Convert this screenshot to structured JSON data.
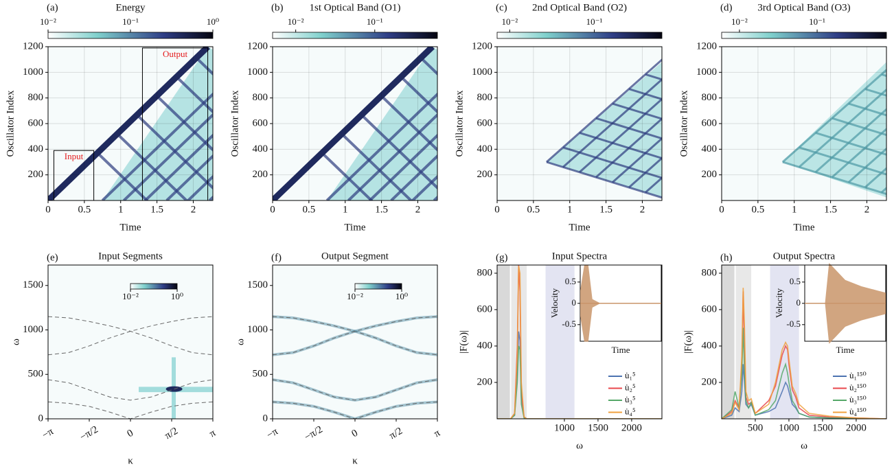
{
  "chart_data": [
    {
      "type": "heatmap",
      "panel_label": "(a)",
      "title": "Energy",
      "colorbar_lim": [
        0.01,
        1
      ],
      "colorbar_scale": "log",
      "colorbar_ticks": [
        {
          "value": 0.01,
          "label": "10⁻²"
        },
        {
          "value": 0.1,
          "label": "10⁻¹"
        },
        {
          "value": 1,
          "label": "10⁰"
        }
      ],
      "xlabel": "Time",
      "ylabel": "Oscillator Index",
      "xlim": [
        0,
        2.27
      ],
      "xticks": [
        0,
        0.5,
        1,
        1.5,
        2
      ],
      "ylim": [
        0,
        1200
      ],
      "yticks": [
        200,
        400,
        600,
        800,
        1000,
        1200
      ],
      "grid": true,
      "boxes": [
        {
          "label": "Input",
          "x": [
            0.08,
            0.63
          ],
          "y": [
            0,
            390
          ],
          "color": "#e41a1c"
        },
        {
          "label": "Output",
          "x": [
            1.3,
            2.2
          ],
          "y": [
            0,
            1190
          ],
          "color": "#e41a1c"
        }
      ]
    },
    {
      "type": "heatmap",
      "panel_label": "(b)",
      "title": "1st Optical Band (O1)",
      "colorbar_lim": [
        0.0051,
        0.62
      ],
      "colorbar_scale": "log",
      "colorbar_ticks": [
        {
          "value": 0.01,
          "label": "10⁻²"
        },
        {
          "value": 0.1,
          "label": "10⁻¹"
        }
      ],
      "xlabel": "Time",
      "ylabel": "Oscillator Index",
      "xlim": [
        0,
        2.27
      ],
      "xticks": [
        0,
        0.5,
        1,
        1.5,
        2
      ],
      "ylim": [
        0,
        1200
      ],
      "yticks": [
        200,
        400,
        600,
        800,
        1000,
        1200
      ],
      "grid": true
    },
    {
      "type": "heatmap",
      "panel_label": "(c)",
      "title": "2nd Optical Band (O2)",
      "colorbar_lim": [
        0.0071,
        0.63
      ],
      "colorbar_scale": "log",
      "colorbar_ticks": [
        {
          "value": 0.01,
          "label": "10⁻²"
        },
        {
          "value": 0.1,
          "label": "10⁻¹"
        }
      ],
      "xlabel": "Time",
      "ylabel": "Oscillator Index",
      "xlim": [
        0,
        2.27
      ],
      "xticks": [
        0,
        0.5,
        1,
        1.5,
        2
      ],
      "ylim": [
        0,
        1200
      ],
      "yticks": [
        200,
        400,
        600,
        800,
        1000,
        1200
      ],
      "grid": true
    },
    {
      "type": "heatmap",
      "panel_label": "(d)",
      "title": "3rd Optical Band (O3)",
      "colorbar_lim": [
        0.0059,
        0.78
      ],
      "colorbar_scale": "log",
      "colorbar_ticks": [
        {
          "value": 0.01,
          "label": "10⁻²"
        },
        {
          "value": 0.1,
          "label": "10⁻¹"
        }
      ],
      "xlabel": "Time",
      "ylabel": "Oscillator Index",
      "xlim": [
        0,
        2.27
      ],
      "xticks": [
        0,
        0.5,
        1,
        1.5,
        2
      ],
      "ylim": [
        0,
        1200
      ],
      "yticks": [
        200,
        400,
        600,
        800,
        1000,
        1200
      ],
      "grid": true
    },
    {
      "type": "heatmap",
      "panel_label": "(e)",
      "title": "Input Segments",
      "colorbar_lim": [
        0.01,
        1
      ],
      "colorbar_scale": "log",
      "colorbar_ticks": [
        {
          "value": 0.01,
          "label": "10⁻²"
        },
        {
          "value": 1,
          "label": "10⁰"
        }
      ],
      "xlabel": "κ",
      "ylabel": "ω",
      "xlim": [
        -3.1416,
        3.1416
      ],
      "xticks": [
        {
          "value": -3.1416,
          "label": "−π"
        },
        {
          "value": -1.5708,
          "label": "−π/2"
        },
        0,
        {
          "value": 1.5708,
          "label": "π/2"
        },
        {
          "value": 3.1416,
          "label": "π"
        }
      ],
      "ylim": [
        0,
        1730
      ],
      "yticks": [
        0,
        500,
        1000,
        1500
      ],
      "grid": false,
      "curves_x": [
        -3.1416,
        -2.3562,
        -1.5708,
        -0.7854,
        0,
        0.7854,
        1.5708,
        2.3562,
        3.1416
      ],
      "curves": [
        [
          1150,
          1135,
          1095,
          1045,
          985,
          910,
          820,
          745,
          720
        ],
        [
          720,
          745,
          820,
          910,
          985,
          1045,
          1095,
          1135,
          1150
        ],
        [
          440,
          405,
          325,
          245,
          210,
          245,
          325,
          405,
          440
        ],
        [
          190,
          175,
          140,
          75,
          0,
          75,
          140,
          175,
          190
        ]
      ]
    },
    {
      "type": "heatmap",
      "panel_label": "(f)",
      "title": "Output Segment",
      "colorbar_lim": [
        0.01,
        1
      ],
      "colorbar_scale": "log",
      "colorbar_ticks": [
        {
          "value": 0.01,
          "label": "10⁻²"
        },
        {
          "value": 1,
          "label": "10⁰"
        }
      ],
      "xlabel": "κ",
      "ylabel": "ω",
      "xlim": [
        -3.1416,
        3.1416
      ],
      "xticks": [
        {
          "value": -3.1416,
          "label": "−π"
        },
        {
          "value": -1.5708,
          "label": "−π/2"
        },
        0,
        {
          "value": 1.5708,
          "label": "π/2"
        },
        {
          "value": 3.1416,
          "label": "π"
        }
      ],
      "ylim": [
        0,
        1730
      ],
      "yticks": [
        0,
        500,
        1000,
        1500
      ],
      "grid": false,
      "curves_x": [
        -3.1416,
        -2.3562,
        -1.5708,
        -0.7854,
        0,
        0.7854,
        1.5708,
        2.3562,
        3.1416
      ],
      "curves": [
        [
          1150,
          1135,
          1095,
          1045,
          985,
          910,
          820,
          745,
          720
        ],
        [
          720,
          745,
          820,
          910,
          985,
          1045,
          1095,
          1135,
          1150
        ],
        [
          440,
          405,
          325,
          245,
          210,
          245,
          325,
          405,
          440
        ],
        [
          190,
          175,
          140,
          75,
          0,
          75,
          140,
          175,
          190
        ]
      ]
    },
    {
      "type": "line",
      "panel_label": "(g)",
      "title": "Input Spectra",
      "xlabel": "ω",
      "ylabel": "|F(ω)|",
      "xlim": [
        0,
        2450
      ],
      "xticks": [
        1000,
        1500,
        2000
      ],
      "ylim": [
        0,
        845
      ],
      "yticks": [
        200,
        400,
        600,
        800
      ],
      "legend": "lower right",
      "bands": [
        {
          "x": [
            0,
            190
          ],
          "color": "#d9d9d9"
        },
        {
          "x": [
            210,
            440
          ],
          "color": "#e8e8e8"
        },
        {
          "x": [
            720,
            1150
          ],
          "color": "#e3e4f2"
        }
      ],
      "x": [
        0,
        150,
        200,
        260,
        300,
        320,
        340,
        360,
        400,
        440,
        500,
        700,
        800,
        900,
        950,
        980,
        1000,
        1050,
        1100,
        1150,
        1300,
        1600,
        2000,
        2450
      ],
      "series": [
        {
          "name": "u̇₁⁵",
          "color": "#4c72b0",
          "values": [
            0,
            0,
            0,
            20,
            250,
            480,
            430,
            120,
            10,
            0,
            0,
            0,
            0,
            0,
            0,
            0,
            0,
            0,
            0,
            0,
            0,
            0,
            0,
            0
          ]
        },
        {
          "name": "u̇₂⁵",
          "color": "#e8474c",
          "values": [
            0,
            0,
            0,
            30,
            400,
            845,
            700,
            150,
            10,
            0,
            0,
            0,
            0,
            0,
            0,
            0,
            0,
            0,
            0,
            0,
            0,
            0,
            0,
            0
          ]
        },
        {
          "name": "u̇₃⁵",
          "color": "#55a868",
          "values": [
            0,
            0,
            0,
            20,
            200,
            400,
            380,
            80,
            5,
            0,
            0,
            0,
            0,
            0,
            0,
            0,
            0,
            0,
            0,
            0,
            0,
            0,
            0,
            0
          ]
        },
        {
          "name": "u̇₄⁵",
          "color": "#f0a03c",
          "values": [
            0,
            0,
            0,
            30,
            350,
            840,
            800,
            200,
            10,
            0,
            0,
            0,
            0,
            0,
            0,
            0,
            0,
            0,
            0,
            0,
            0,
            0,
            0,
            0
          ]
        }
      ],
      "inset": {
        "xlabel": "Time",
        "ylabel": "Velocity",
        "xlim": [
          0,
          1
        ],
        "ylim": [
          -0.89,
          0.9
        ],
        "yticks": [
          -0.5,
          0,
          0.5
        ],
        "color": "#c9956a",
        "x": [
          0,
          0.05,
          0.1,
          0.15,
          0.25,
          0.3,
          0.5,
          0.7,
          0.9,
          1
        ],
        "values": [
          0.3,
          0.9,
          0.9,
          0.1,
          0,
          0,
          0,
          0,
          0,
          0
        ]
      }
    },
    {
      "type": "line",
      "panel_label": "(h)",
      "title": "Output Spectra",
      "xlabel": "ω",
      "ylabel": "|F(ω)|",
      "xlim": [
        0,
        2450
      ],
      "xticks": [
        500,
        1000,
        1500,
        2000
      ],
      "ylim": [
        0,
        845
      ],
      "yticks": [
        200,
        400,
        600,
        800
      ],
      "legend": "lower right",
      "bands": [
        {
          "x": [
            0,
            190
          ],
          "color": "#d9d9d9"
        },
        {
          "x": [
            210,
            440
          ],
          "color": "#e8e8e8"
        },
        {
          "x": [
            720,
            1150
          ],
          "color": "#e3e4f2"
        }
      ],
      "x": [
        0,
        150,
        200,
        260,
        300,
        320,
        340,
        360,
        400,
        440,
        500,
        700,
        800,
        900,
        950,
        980,
        1000,
        1050,
        1100,
        1150,
        1300,
        1600,
        2000,
        2450
      ],
      "series": [
        {
          "name": "u̇₁¹⁵⁰",
          "color": "#4c72b0",
          "values": [
            0,
            20,
            60,
            40,
            150,
            300,
            200,
            80,
            60,
            80,
            20,
            40,
            60,
            150,
            200,
            180,
            150,
            80,
            60,
            30,
            10,
            5,
            2,
            0
          ]
        },
        {
          "name": "u̇₂¹⁵⁰",
          "color": "#e8474c",
          "values": [
            0,
            40,
            100,
            60,
            300,
            700,
            380,
            120,
            80,
            90,
            30,
            100,
            180,
            350,
            400,
            380,
            300,
            160,
            120,
            60,
            20,
            10,
            5,
            0
          ]
        },
        {
          "name": "u̇₃¹⁵⁰",
          "color": "#55a868",
          "values": [
            0,
            50,
            150,
            60,
            250,
            500,
            250,
            100,
            60,
            90,
            20,
            50,
            100,
            250,
            300,
            250,
            200,
            100,
            70,
            30,
            10,
            5,
            2,
            0
          ]
        },
        {
          "name": "u̇₄¹⁵⁰",
          "color": "#f0a03c",
          "values": [
            0,
            30,
            90,
            50,
            350,
            720,
            500,
            150,
            100,
            110,
            30,
            80,
            200,
            380,
            420,
            400,
            330,
            180,
            140,
            80,
            30,
            15,
            5,
            0
          ]
        }
      ],
      "inset": {
        "xlabel": "Time",
        "ylabel": "Velocity",
        "xlim": [
          0,
          1
        ],
        "ylim": [
          -0.89,
          0.9
        ],
        "yticks": [
          -0.5,
          0,
          0.5
        ],
        "color": "#c9956a",
        "x": [
          0,
          0.05,
          0.1,
          0.15,
          0.25,
          0.3,
          0.5,
          0.7,
          0.9,
          1
        ],
        "values": [
          0,
          0,
          0,
          0,
          0,
          0.95,
          0.55,
          0.4,
          0.3,
          0.25
        ]
      }
    }
  ]
}
